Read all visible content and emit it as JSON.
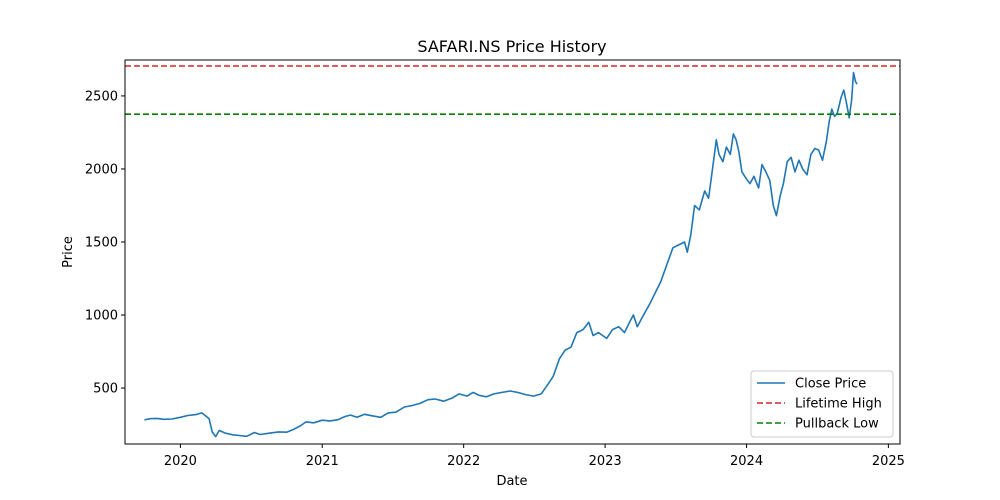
{
  "chart_data": {
    "type": "line",
    "title": "SAFARI.NS Price History",
    "xlabel": "Date",
    "ylabel": "Price",
    "xlim": [
      "2019-08-11",
      "2025-01-31"
    ],
    "ylim": [
      117,
      2746
    ],
    "x_ticks": [
      "2020",
      "2021",
      "2022",
      "2023",
      "2024",
      "2025"
    ],
    "y_ticks": [
      500,
      1000,
      1500,
      2000,
      2500
    ],
    "grid": false,
    "legend_position": "lower right",
    "series": [
      {
        "name": "Close Price",
        "color": "#1f77b4",
        "style": "solid",
        "points": [
          [
            "2019-09-30",
            282
          ],
          [
            "2019-10-15",
            290
          ],
          [
            "2019-11-01",
            292
          ],
          [
            "2019-11-20",
            286
          ],
          [
            "2019-12-10",
            288
          ],
          [
            "2020-01-01",
            300
          ],
          [
            "2020-01-20",
            312
          ],
          [
            "2020-02-10",
            318
          ],
          [
            "2020-02-25",
            330
          ],
          [
            "2020-03-05",
            312
          ],
          [
            "2020-03-15",
            290
          ],
          [
            "2020-03-23",
            200
          ],
          [
            "2020-04-01",
            168
          ],
          [
            "2020-04-10",
            210
          ],
          [
            "2020-04-25",
            192
          ],
          [
            "2020-05-15",
            180
          ],
          [
            "2020-06-01",
            175
          ],
          [
            "2020-06-20",
            170
          ],
          [
            "2020-07-10",
            196
          ],
          [
            "2020-07-25",
            182
          ],
          [
            "2020-08-15",
            190
          ],
          [
            "2020-09-10",
            200
          ],
          [
            "2020-10-01",
            198
          ],
          [
            "2020-10-20",
            218
          ],
          [
            "2020-11-05",
            240
          ],
          [
            "2020-11-20",
            268
          ],
          [
            "2020-12-10",
            262
          ],
          [
            "2021-01-01",
            280
          ],
          [
            "2021-01-20",
            275
          ],
          [
            "2021-02-10",
            283
          ],
          [
            "2021-03-01",
            305
          ],
          [
            "2021-03-15",
            315
          ],
          [
            "2021-04-01",
            300
          ],
          [
            "2021-04-20",
            320
          ],
          [
            "2021-05-10",
            310
          ],
          [
            "2021-06-01",
            300
          ],
          [
            "2021-06-20",
            330
          ],
          [
            "2021-07-10",
            335
          ],
          [
            "2021-08-01",
            370
          ],
          [
            "2021-08-20",
            380
          ],
          [
            "2021-09-10",
            395
          ],
          [
            "2021-10-01",
            420
          ],
          [
            "2021-10-20",
            425
          ],
          [
            "2021-11-10",
            410
          ],
          [
            "2021-12-01",
            430
          ],
          [
            "2021-12-20",
            460
          ],
          [
            "2022-01-10",
            445
          ],
          [
            "2022-01-25",
            470
          ],
          [
            "2022-02-10",
            450
          ],
          [
            "2022-03-01",
            440
          ],
          [
            "2022-03-20",
            460
          ],
          [
            "2022-04-10",
            470
          ],
          [
            "2022-05-01",
            480
          ],
          [
            "2022-05-20",
            470
          ],
          [
            "2022-06-10",
            455
          ],
          [
            "2022-06-30",
            445
          ],
          [
            "2022-07-20",
            460
          ],
          [
            "2022-08-05",
            520
          ],
          [
            "2022-08-20",
            580
          ],
          [
            "2022-09-05",
            700
          ],
          [
            "2022-09-20",
            760
          ],
          [
            "2022-10-05",
            780
          ],
          [
            "2022-10-20",
            880
          ],
          [
            "2022-11-05",
            900
          ],
          [
            "2022-11-20",
            950
          ],
          [
            "2022-12-01",
            860
          ],
          [
            "2022-12-15",
            880
          ],
          [
            "2023-01-05",
            840
          ],
          [
            "2023-01-20",
            900
          ],
          [
            "2023-02-05",
            920
          ],
          [
            "2023-02-20",
            880
          ],
          [
            "2023-03-05",
            950
          ],
          [
            "2023-03-15",
            1000
          ],
          [
            "2023-03-25",
            920
          ],
          [
            "2023-04-10",
            1000
          ],
          [
            "2023-04-25",
            1070
          ],
          [
            "2023-05-10",
            1150
          ],
          [
            "2023-05-25",
            1230
          ],
          [
            "2023-06-10",
            1350
          ],
          [
            "2023-06-25",
            1460
          ],
          [
            "2023-07-10",
            1480
          ],
          [
            "2023-07-25",
            1500
          ],
          [
            "2023-08-01",
            1430
          ],
          [
            "2023-08-10",
            1550
          ],
          [
            "2023-08-20",
            1750
          ],
          [
            "2023-09-01",
            1720
          ],
          [
            "2023-09-15",
            1850
          ],
          [
            "2023-09-25",
            1800
          ],
          [
            "2023-10-05",
            2000
          ],
          [
            "2023-10-15",
            2200
          ],
          [
            "2023-10-22",
            2100
          ],
          [
            "2023-11-01",
            2050
          ],
          [
            "2023-11-10",
            2150
          ],
          [
            "2023-11-20",
            2100
          ],
          [
            "2023-11-28",
            2240
          ],
          [
            "2023-12-05",
            2200
          ],
          [
            "2023-12-12",
            2120
          ],
          [
            "2023-12-20",
            1980
          ],
          [
            "2024-01-01",
            1930
          ],
          [
            "2024-01-10",
            1900
          ],
          [
            "2024-01-20",
            1950
          ],
          [
            "2024-02-01",
            1870
          ],
          [
            "2024-02-10",
            2030
          ],
          [
            "2024-02-20",
            1980
          ],
          [
            "2024-03-01",
            1920
          ],
          [
            "2024-03-10",
            1750
          ],
          [
            "2024-03-18",
            1680
          ],
          [
            "2024-03-28",
            1820
          ],
          [
            "2024-04-05",
            1900
          ],
          [
            "2024-04-15",
            2050
          ],
          [
            "2024-04-25",
            2080
          ],
          [
            "2024-05-05",
            1980
          ],
          [
            "2024-05-15",
            2060
          ],
          [
            "2024-05-25",
            2000
          ],
          [
            "2024-06-05",
            1960
          ],
          [
            "2024-06-15",
            2100
          ],
          [
            "2024-06-25",
            2140
          ],
          [
            "2024-07-05",
            2130
          ],
          [
            "2024-07-15",
            2060
          ],
          [
            "2024-07-25",
            2190
          ],
          [
            "2024-08-01",
            2320
          ],
          [
            "2024-08-08",
            2410
          ],
          [
            "2024-08-15",
            2360
          ],
          [
            "2024-08-22",
            2380
          ],
          [
            "2024-09-01",
            2490
          ],
          [
            "2024-09-08",
            2540
          ],
          [
            "2024-09-15",
            2450
          ],
          [
            "2024-09-22",
            2350
          ],
          [
            "2024-09-28",
            2470
          ],
          [
            "2024-10-03",
            2660
          ],
          [
            "2024-10-08",
            2600
          ],
          [
            "2024-10-12",
            2580
          ]
        ]
      },
      {
        "name": "Lifetime High",
        "color": "#d62728",
        "style": "dashed",
        "value": 2705
      },
      {
        "name": "Pullback Low",
        "color": "#008000",
        "style": "dashed",
        "value": 2375
      }
    ]
  }
}
